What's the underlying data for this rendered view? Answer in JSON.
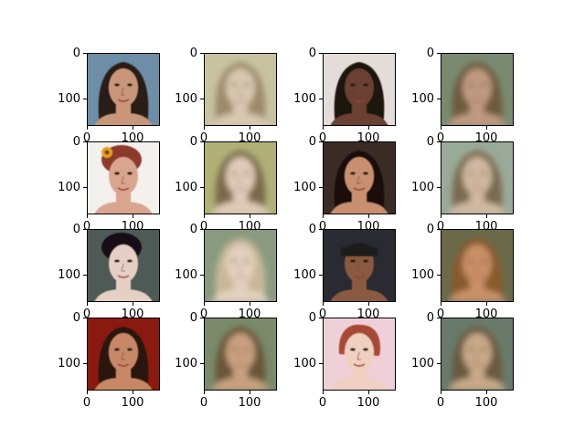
{
  "chart_data": {
    "type": "image-grid",
    "title": "",
    "rows": 4,
    "cols": 4,
    "xlim": [
      0,
      160
    ],
    "ylim": [
      160,
      0
    ],
    "xticks": [
      "0",
      "100"
    ],
    "yticks": [
      "0",
      "100"
    ],
    "panels": [
      {
        "kind": "original",
        "bg": "#6d8ea6",
        "hair": "#2a1c14",
        "skin": "#c9967a",
        "hair_style": "long-dark"
      },
      {
        "kind": "reconstruction",
        "bg": "#c8c2a0",
        "hair": "#9c8a6c",
        "skin": "#d8c8b0",
        "hair_style": "blurry"
      },
      {
        "kind": "original",
        "bg": "#e4dcd8",
        "hair": "#1e1410",
        "skin": "#6b4030",
        "hair_style": "long-dark"
      },
      {
        "kind": "reconstruction",
        "bg": "#7a8a70",
        "hair": "#6e5a3c",
        "skin": "#c09a80",
        "hair_style": "blurry"
      },
      {
        "kind": "original",
        "bg": "#f4f0ee",
        "hair": "#8c3a2a",
        "skin": "#d9a58e",
        "hair_style": "updo"
      },
      {
        "kind": "reconstruction",
        "bg": "#b0b078",
        "hair": "#7a6a48",
        "skin": "#e0cbb8",
        "hair_style": "blurry"
      },
      {
        "kind": "original",
        "bg": "#3a2c24",
        "hair": "#1a1008",
        "skin": "#c89070",
        "hair_style": "long-dark"
      },
      {
        "kind": "reconstruction",
        "bg": "#9aaa98",
        "hair": "#7a6a50",
        "skin": "#d0b8a0",
        "hair_style": "blurry"
      },
      {
        "kind": "original",
        "bg": "#4e5a56",
        "hair": "#141014",
        "skin": "#e6d0c6",
        "hair_style": "updo"
      },
      {
        "kind": "reconstruction",
        "bg": "#8a9a80",
        "hair": "#c8b898",
        "skin": "#e2d0be",
        "hair_style": "blurry"
      },
      {
        "kind": "original",
        "bg": "#2a2a32",
        "hair": "#1a1a1a",
        "skin": "#8a5a40",
        "hair_style": "cap"
      },
      {
        "kind": "reconstruction",
        "bg": "#6a6a4a",
        "hair": "#8a5a2a",
        "skin": "#c89068",
        "hair_style": "blurry"
      },
      {
        "kind": "original",
        "bg": "#8a1a10",
        "hair": "#2a1810",
        "skin": "#c88868",
        "hair_style": "long-dark"
      },
      {
        "kind": "reconstruction",
        "bg": "#7a8a6a",
        "hair": "#6a5438",
        "skin": "#c8a080",
        "hair_style": "blurry"
      },
      {
        "kind": "original",
        "bg": "#f0d0d8",
        "hair": "#a84a38",
        "skin": "#f0d0c0",
        "hair_style": "short"
      },
      {
        "kind": "reconstruction",
        "bg": "#6a7a6a",
        "hair": "#6a5a40",
        "skin": "#c8a888",
        "hair_style": "blurry"
      }
    ]
  }
}
